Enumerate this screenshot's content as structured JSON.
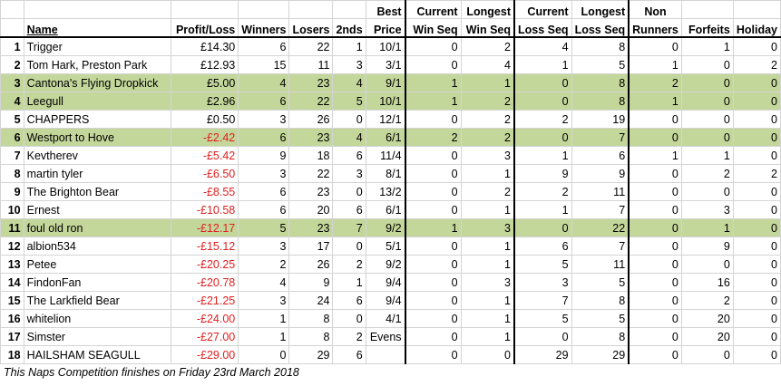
{
  "headers": {
    "row1": {
      "best": "Best",
      "current_win": "Current",
      "longest_win": "Longest",
      "current_loss": "Current",
      "longest_loss": "Longest",
      "non": "Non"
    },
    "row2": {
      "name": "Name",
      "profit": "Profit/Loss",
      "winners": "Winners",
      "losers": "Losers",
      "seconds": "2nds",
      "price": "Price",
      "current_win": "Win Seq",
      "longest_win": "Win Seq",
      "current_loss": "Loss Seq",
      "longest_loss": "Loss Seq",
      "non": "Runners",
      "forfeits": "Forfeits",
      "holiday": "Holiday"
    }
  },
  "rows": [
    {
      "rank": "1",
      "name": "Trigger",
      "profit": "£14.30",
      "winners": "6",
      "losers": "22",
      "seconds": "1",
      "price": "10/1",
      "cur_win": "0",
      "long_win": "2",
      "cur_loss": "4",
      "long_loss": "8",
      "non_runners": "0",
      "forfeits": "1",
      "holiday": "0"
    },
    {
      "rank": "2",
      "name": "Tom Hark, Preston Park",
      "profit": "£12.93",
      "winners": "15",
      "losers": "11",
      "seconds": "3",
      "price": "3/1",
      "cur_win": "0",
      "long_win": "4",
      "cur_loss": "1",
      "long_loss": "5",
      "non_runners": "1",
      "forfeits": "0",
      "holiday": "2"
    },
    {
      "rank": "3",
      "name": "Cantona's Flying Dropkick",
      "profit": "£5.00",
      "winners": "4",
      "losers": "23",
      "seconds": "4",
      "price": "9/1",
      "cur_win": "1",
      "long_win": "1",
      "cur_loss": "0",
      "long_loss": "8",
      "non_runners": "2",
      "forfeits": "0",
      "holiday": "0"
    },
    {
      "rank": "4",
      "name": "Leegull",
      "profit": "£2.96",
      "winners": "6",
      "losers": "22",
      "seconds": "5",
      "price": "10/1",
      "cur_win": "1",
      "long_win": "2",
      "cur_loss": "0",
      "long_loss": "8",
      "non_runners": "1",
      "forfeits": "0",
      "holiday": "0"
    },
    {
      "rank": "5",
      "name": "CHAPPERS",
      "profit": "£0.50",
      "winners": "3",
      "losers": "26",
      "seconds": "0",
      "price": "12/1",
      "cur_win": "0",
      "long_win": "2",
      "cur_loss": "2",
      "long_loss": "19",
      "non_runners": "0",
      "forfeits": "0",
      "holiday": "0"
    },
    {
      "rank": "6",
      "name": "Westport to Hove",
      "profit": "-£2.42",
      "winners": "6",
      "losers": "23",
      "seconds": "4",
      "price": "6/1",
      "cur_win": "2",
      "long_win": "2",
      "cur_loss": "0",
      "long_loss": "7",
      "non_runners": "0",
      "forfeits": "0",
      "holiday": "0"
    },
    {
      "rank": "7",
      "name": "Kevtherev",
      "profit": "-£5.42",
      "winners": "9",
      "losers": "18",
      "seconds": "6",
      "price": "11/4",
      "cur_win": "0",
      "long_win": "3",
      "cur_loss": "1",
      "long_loss": "6",
      "non_runners": "1",
      "forfeits": "1",
      "holiday": "0"
    },
    {
      "rank": "8",
      "name": "martin tyler",
      "profit": "-£6.50",
      "winners": "3",
      "losers": "22",
      "seconds": "3",
      "price": "8/1",
      "cur_win": "0",
      "long_win": "1",
      "cur_loss": "9",
      "long_loss": "9",
      "non_runners": "0",
      "forfeits": "2",
      "holiday": "2"
    },
    {
      "rank": "9",
      "name": "The Brighton Bear",
      "profit": "-£8.55",
      "winners": "6",
      "losers": "23",
      "seconds": "0",
      "price": "13/2",
      "cur_win": "0",
      "long_win": "2",
      "cur_loss": "2",
      "long_loss": "11",
      "non_runners": "0",
      "forfeits": "0",
      "holiday": "0"
    },
    {
      "rank": "10",
      "name": "Ernest",
      "profit": "-£10.58",
      "winners": "6",
      "losers": "20",
      "seconds": "6",
      "price": "6/1",
      "cur_win": "0",
      "long_win": "1",
      "cur_loss": "1",
      "long_loss": "7",
      "non_runners": "0",
      "forfeits": "3",
      "holiday": "0"
    },
    {
      "rank": "11",
      "name": "foul old ron",
      "profit": "-£12.17",
      "winners": "5",
      "losers": "23",
      "seconds": "7",
      "price": "9/2",
      "cur_win": "1",
      "long_win": "3",
      "cur_loss": "0",
      "long_loss": "22",
      "non_runners": "0",
      "forfeits": "1",
      "holiday": "0"
    },
    {
      "rank": "12",
      "name": "albion534",
      "profit": "-£15.12",
      "winners": "3",
      "losers": "17",
      "seconds": "0",
      "price": "5/1",
      "cur_win": "0",
      "long_win": "1",
      "cur_loss": "6",
      "long_loss": "7",
      "non_runners": "0",
      "forfeits": "9",
      "holiday": "0"
    },
    {
      "rank": "13",
      "name": "Petee",
      "profit": "-£20.25",
      "winners": "2",
      "losers": "26",
      "seconds": "2",
      "price": "9/2",
      "cur_win": "0",
      "long_win": "1",
      "cur_loss": "5",
      "long_loss": "11",
      "non_runners": "0",
      "forfeits": "0",
      "holiday": "0"
    },
    {
      "rank": "14",
      "name": "FindonFan",
      "profit": "-£20.78",
      "winners": "4",
      "losers": "9",
      "seconds": "1",
      "price": "9/4",
      "cur_win": "0",
      "long_win": "3",
      "cur_loss": "3",
      "long_loss": "5",
      "non_runners": "0",
      "forfeits": "16",
      "holiday": "0"
    },
    {
      "rank": "15",
      "name": "The Larkfield Bear",
      "profit": "-£21.25",
      "winners": "3",
      "losers": "24",
      "seconds": "6",
      "price": "9/4",
      "cur_win": "0",
      "long_win": "1",
      "cur_loss": "7",
      "long_loss": "8",
      "non_runners": "0",
      "forfeits": "2",
      "holiday": "0"
    },
    {
      "rank": "16",
      "name": "whitelion",
      "profit": "-£24.00",
      "winners": "1",
      "losers": "8",
      "seconds": "0",
      "price": "4/1",
      "cur_win": "0",
      "long_win": "1",
      "cur_loss": "5",
      "long_loss": "5",
      "non_runners": "0",
      "forfeits": "20",
      "holiday": "0"
    },
    {
      "rank": "17",
      "name": "Simster",
      "profit": "-£27.00",
      "winners": "1",
      "losers": "8",
      "seconds": "2",
      "price": "Evens",
      "cur_win": "0",
      "long_win": "1",
      "cur_loss": "0",
      "long_loss": "8",
      "non_runners": "0",
      "forfeits": "20",
      "holiday": "0"
    },
    {
      "rank": "18",
      "name": "HAILSHAM SEAGULL",
      "profit": "-£29.00",
      "winners": "0",
      "losers": "29",
      "seconds": "6",
      "price": "",
      "cur_win": "0",
      "long_win": "0",
      "cur_loss": "29",
      "long_loss": "29",
      "non_runners": "0",
      "forfeits": "0",
      "holiday": "0"
    }
  ],
  "highlighted_ranks": [
    "3",
    "4",
    "6",
    "11"
  ],
  "highlight_color": "#c4d79b",
  "negative_color": "#e02020",
  "footer": "This Naps Competition finishes on Friday 23rd March 2018"
}
